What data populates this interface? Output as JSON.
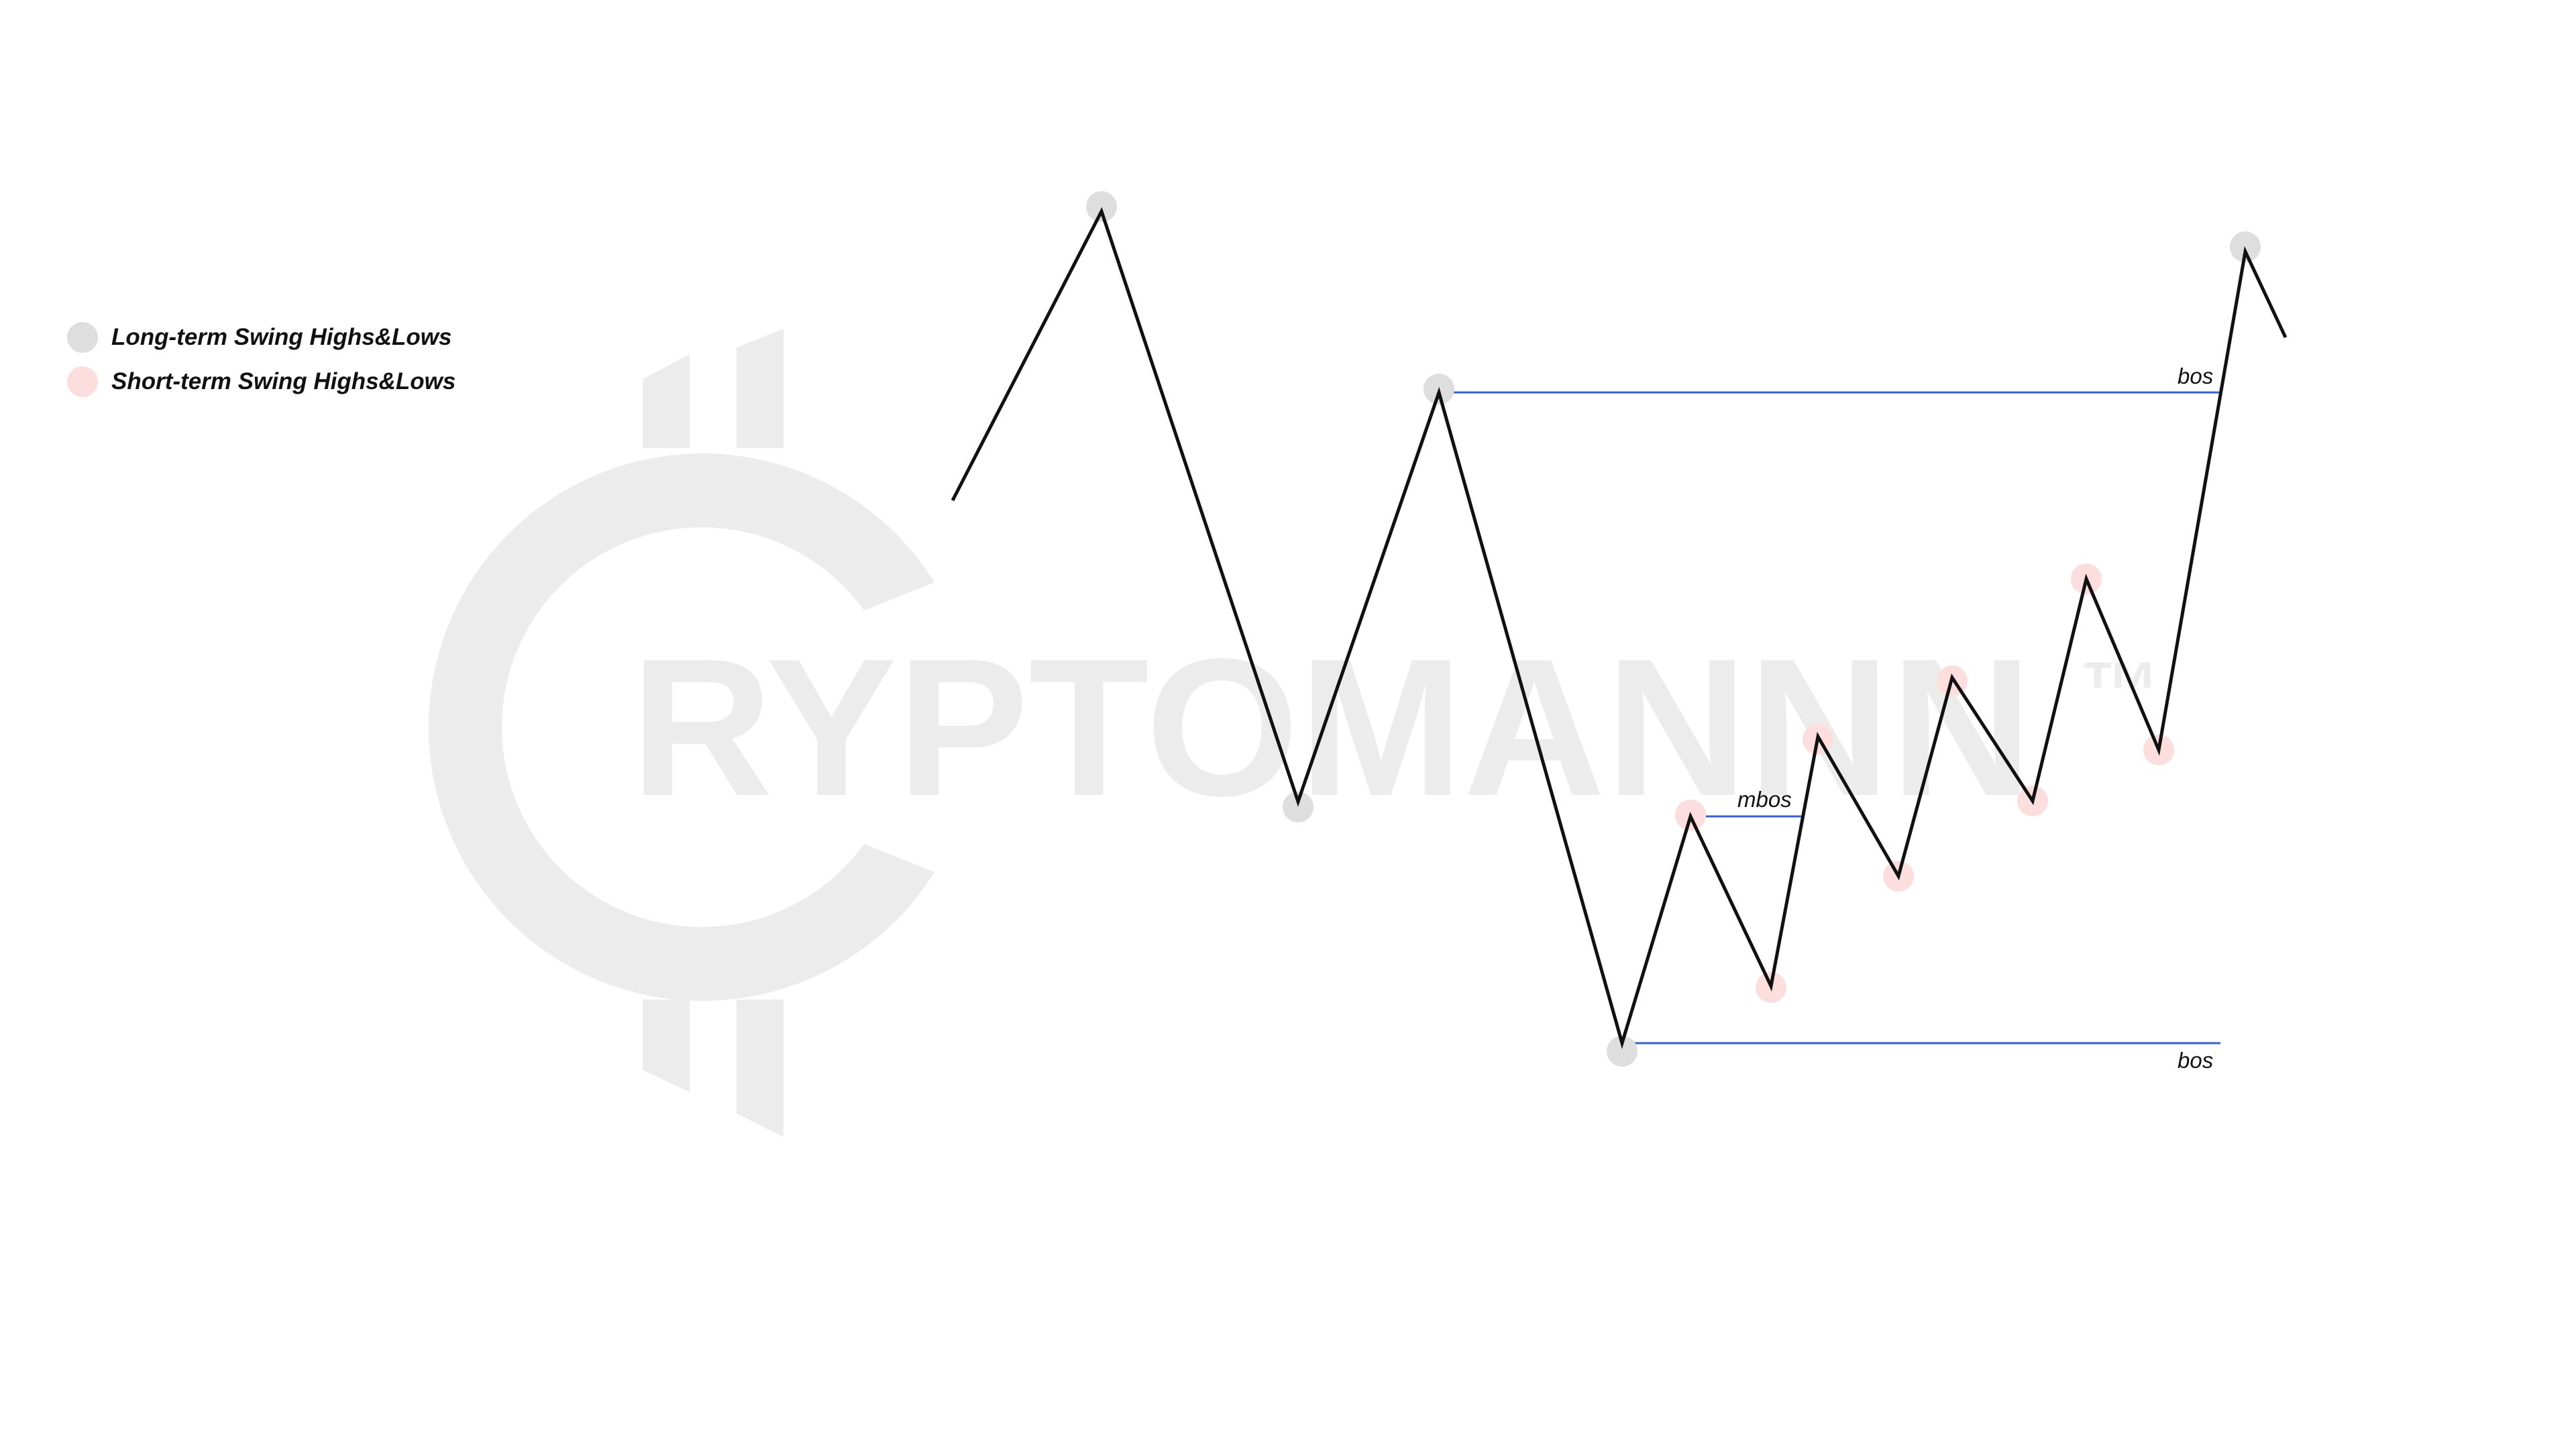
{
  "watermark": {
    "text": "RYPTOMANNN",
    "trademark": "™",
    "color": "#ececec"
  },
  "legend": {
    "items": [
      {
        "label": "Long-term Swing Highs&Lows",
        "color": "#dedede"
      },
      {
        "label": "Short-term Swing Highs&Lows",
        "color": "#fddede"
      }
    ]
  },
  "annotations": {
    "bos_top": "bos",
    "bos_bottom": "bos",
    "mbos": "mbos"
  },
  "colors": {
    "price_line": "#111111",
    "level_line": "#2f5fe0",
    "long_term_marker": "#dedede",
    "short_term_marker": "#fddede"
  }
}
